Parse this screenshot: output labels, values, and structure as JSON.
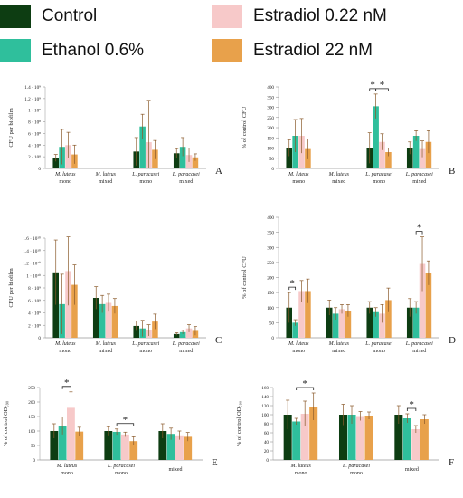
{
  "legend": {
    "items": [
      {
        "label": "Control",
        "color": "#0d3d12"
      },
      {
        "label": "Estradiol 0.22 nM",
        "color": "#f7c9c9"
      },
      {
        "label": "Ethanol 0.6%",
        "color": "#2fbf9c"
      },
      {
        "label": "Estradiol 22 nM",
        "color": "#e8a14b"
      }
    ]
  },
  "chart_data": [
    {
      "panel": "A",
      "type": "bar",
      "ylabel": "CFU per biofilm",
      "ylim": [
        0,
        1400000000.0
      ],
      "yticks": [
        0,
        200000000.0,
        400000000.0,
        600000000.0,
        800000000.0,
        1000000000.0,
        1200000000.0,
        1400000000.0
      ],
      "ytick_labels": [
        "0",
        "2 · 10⁸",
        "4 · 10⁸",
        "6 · 10⁸",
        "8 · 10⁸",
        "1 · 10⁹",
        "1.2 · 10⁹",
        "1.4 · 10⁹"
      ],
      "groups": [
        {
          "name": "M. luteus",
          "sub": "mono",
          "values": [
            180000000.0,
            370000000.0,
            400000000.0,
            240000000.0
          ],
          "errors": [
            60000000.0,
            300000000.0,
            220000000.0,
            160000000.0
          ]
        },
        {
          "name": "M. luteus",
          "sub": "mixed",
          "values": [
            0,
            0,
            0,
            0
          ],
          "errors": [
            0,
            0,
            0,
            0
          ]
        },
        {
          "name": "L. paracasei",
          "sub": "mono",
          "values": [
            290000000.0,
            720000000.0,
            450000000.0,
            320000000.0
          ],
          "errors": [
            240000000.0,
            210000000.0,
            720000000.0,
            160000000.0
          ]
        },
        {
          "name": "L. paracasei",
          "sub": "mixed",
          "values": [
            260000000.0,
            370000000.0,
            230000000.0,
            190000000.0
          ],
          "errors": [
            80000000.0,
            160000000.0,
            120000000.0,
            60000000.0
          ]
        }
      ],
      "annotations": []
    },
    {
      "panel": "B",
      "type": "bar",
      "ylabel": "% of control CFU",
      "ylim": [
        0,
        400
      ],
      "yticks": [
        0,
        50,
        100,
        150,
        200,
        250,
        300,
        350,
        400
      ],
      "ytick_labels": [
        "0",
        "50",
        "100",
        "150",
        "200",
        "250",
        "300",
        "350",
        "400"
      ],
      "groups": [
        {
          "name": "M. luteus",
          "sub": "mono",
          "values": [
            100,
            160,
            160,
            95
          ],
          "errors": [
            40,
            80,
            85,
            50
          ]
        },
        {
          "name": "M. luteus",
          "sub": "mixed",
          "values": [
            0,
            0,
            0,
            0
          ],
          "errors": [
            0,
            0,
            0,
            0
          ]
        },
        {
          "name": "L. paracasei",
          "sub": "mono",
          "values": [
            100,
            305,
            130,
            80
          ],
          "errors": [
            75,
            60,
            40,
            20
          ]
        },
        {
          "name": "L. paracasei",
          "sub": "mixed",
          "values": [
            100,
            160,
            95,
            130
          ],
          "errors": [
            30,
            25,
            40,
            55
          ]
        }
      ],
      "annotations": [
        {
          "group": 2,
          "from": 0,
          "to": 1,
          "label": "*"
        },
        {
          "group": 2,
          "from": 1,
          "to": 3,
          "label": "*"
        }
      ]
    },
    {
      "panel": "C",
      "type": "bar",
      "ylabel": "CFU per biofilm",
      "ylim": [
        0,
        16000000000.0
      ],
      "yticks": [
        0,
        2000000000.0,
        4000000000.0,
        6000000000.0,
        8000000000.0,
        10000000000.0,
        12000000000.0,
        14000000000.0,
        16000000000.0
      ],
      "ytick_labels": [
        "0",
        "2 · 10⁹",
        "4 · 10⁹",
        "6 · 10⁹",
        "8 · 10⁹",
        "1 · 10¹⁰",
        "1.2 · 10¹⁰",
        "1.4 · 10¹⁰",
        "1.6 · 10¹⁰"
      ],
      "groups": [
        {
          "name": "M. luteus",
          "sub": "mono",
          "values": [
            10500000000.0,
            5400000000.0,
            10700000000.0,
            8500000000.0
          ],
          "errors": [
            5200000000.0,
            4800000000.0,
            5500000000.0,
            3200000000.0
          ]
        },
        {
          "name": "M. luteus",
          "sub": "mixed",
          "values": [
            6400000000.0,
            5400000000.0,
            5600000000.0,
            5100000000.0
          ],
          "errors": [
            1800000000.0,
            1400000000.0,
            1400000000.0,
            1200000000.0
          ]
        },
        {
          "name": "L. paracasei",
          "sub": "mono",
          "values": [
            1900000000.0,
            1500000000.0,
            1200000000.0,
            2600000000.0
          ],
          "errors": [
            800000000.0,
            1300000000.0,
            900000000.0,
            1200000000.0
          ]
        },
        {
          "name": "L. paracasei",
          "sub": "mixed",
          "values": [
            600000000.0,
            900000000.0,
            1500000000.0,
            1100000000.0
          ],
          "errors": [
            200000000.0,
            300000000.0,
            600000000.0,
            700000000.0
          ]
        }
      ],
      "annotations": []
    },
    {
      "panel": "D",
      "type": "bar",
      "ylabel": "% of control CFU",
      "ylim": [
        0,
        400
      ],
      "yticks": [
        0,
        50,
        100,
        150,
        200,
        250,
        300,
        350,
        400
      ],
      "ytick_labels": [
        "0",
        "50",
        "100",
        "150",
        "200",
        "250",
        "300",
        "350",
        "400"
      ],
      "groups": [
        {
          "name": "M. luteus",
          "sub": "mono",
          "values": [
            100,
            50,
            155,
            155
          ],
          "errors": [
            50,
            10,
            35,
            40
          ]
        },
        {
          "name": "M. luteus",
          "sub": "mixed",
          "values": [
            100,
            80,
            95,
            90
          ],
          "errors": [
            25,
            20,
            15,
            20
          ]
        },
        {
          "name": "L. paracasei",
          "sub": "mono",
          "values": [
            100,
            85,
            80,
            125
          ],
          "errors": [
            20,
            15,
            30,
            40
          ]
        },
        {
          "name": "L. paracasei",
          "sub": "mixed",
          "values": [
            100,
            100,
            245,
            215
          ],
          "errors": [
            30,
            20,
            90,
            40
          ]
        }
      ],
      "annotations": [
        {
          "group": 0,
          "from": 0,
          "to": 1,
          "label": "*"
        },
        {
          "group": 3,
          "from": 1,
          "to": 2,
          "label": "*"
        }
      ]
    },
    {
      "panel": "E",
      "type": "bar",
      "ylabel": "% of control OD₅₉₀",
      "ylim": [
        0,
        250
      ],
      "yticks": [
        0,
        50,
        100,
        150,
        200,
        250
      ],
      "ytick_labels": [
        "0",
        "50",
        "100",
        "150",
        "200",
        "250"
      ],
      "groups": [
        {
          "name": "M. luteus",
          "sub": "mono",
          "values": [
            100,
            118,
            180,
            98
          ],
          "errors": [
            25,
            30,
            55,
            15
          ]
        },
        {
          "name": "L. paracasei",
          "sub": "mono",
          "values": [
            100,
            97,
            88,
            65
          ],
          "errors": [
            15,
            10,
            8,
            15
          ]
        },
        {
          "name": "",
          "sub": "mixed",
          "values": [
            100,
            90,
            85,
            80
          ],
          "errors": [
            25,
            20,
            15,
            15
          ]
        }
      ],
      "annotations": [
        {
          "group": 0,
          "from": 1,
          "to": 2,
          "label": "*"
        },
        {
          "group": 1,
          "from": 1,
          "to": 3,
          "label": "*"
        }
      ]
    },
    {
      "panel": "F",
      "type": "bar",
      "ylabel": "% of control OD₅₉₀",
      "ylim": [
        0,
        160
      ],
      "yticks": [
        0,
        20,
        40,
        60,
        80,
        100,
        120,
        140,
        160
      ],
      "ytick_labels": [
        "0",
        "20",
        "40",
        "60",
        "80",
        "100",
        "120",
        "140",
        "160"
      ],
      "groups": [
        {
          "name": "M. luteus",
          "sub": "mono",
          "values": [
            100,
            85,
            102,
            118
          ],
          "errors": [
            32,
            7,
            28,
            30
          ]
        },
        {
          "name": "L. paracasei",
          "sub": "mono",
          "values": [
            100,
            100,
            97,
            98
          ],
          "errors": [
            23,
            20,
            10,
            8
          ]
        },
        {
          "name": "",
          "sub": "mixed",
          "values": [
            100,
            92,
            68,
            90
          ],
          "errors": [
            20,
            10,
            8,
            10
          ]
        }
      ],
      "annotations": [
        {
          "group": 0,
          "from": 1,
          "to": 3,
          "label": "*"
        },
        {
          "group": 2,
          "from": 1,
          "to": 2,
          "label": "*"
        }
      ]
    }
  ]
}
